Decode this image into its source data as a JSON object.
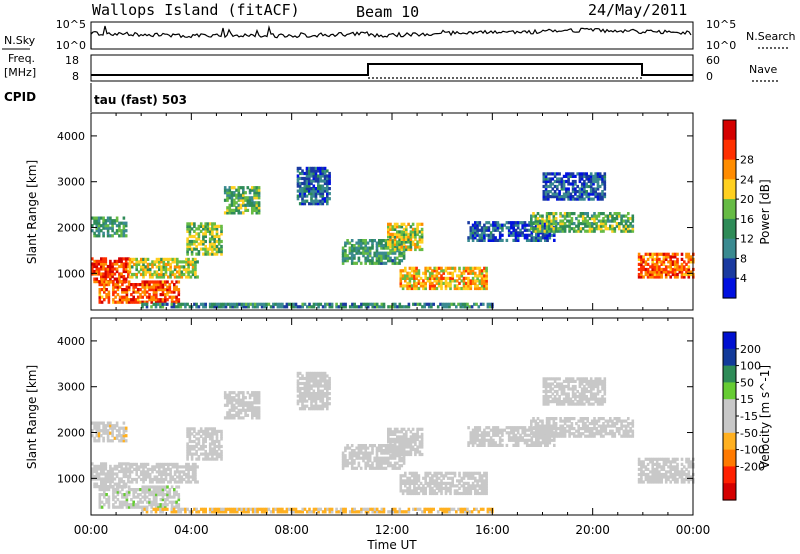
{
  "header": {
    "station": "Wallops Island (fitACF)",
    "beam": "Beam 10",
    "date": "24/May/2011"
  },
  "nsky_panel": {
    "left_label": "N.Sky",
    "left_ticks": [
      "10^5",
      "10^0"
    ],
    "right_ticks": [
      "10^5",
      "10^0"
    ],
    "right_label": "N.Search"
  },
  "freq_panel": {
    "left_label_1": "Freq.",
    "left_label_2": "[MHz]",
    "left_ticks": [
      "18",
      "8"
    ],
    "right_ticks": [
      "60",
      "0"
    ],
    "right_label": "Nave"
  },
  "cpid": {
    "label": "CPID",
    "program": "tau (fast) 503"
  },
  "colors": {
    "power_scale": [
      "#0010e0",
      "#1a3aa0",
      "#3a8a90",
      "#2e8b57",
      "#66bb44",
      "#ffd020",
      "#ff8c00",
      "#ff3000",
      "#d40000"
    ],
    "velocity_scale": [
      "#0010d0",
      "#123a9a",
      "#2e8b57",
      "#66cc33",
      "#c8c8c8",
      "#c8c8c8",
      "#ffb020",
      "#ff7a00",
      "#ff2000",
      "#d40000"
    ]
  },
  "chart_data": [
    {
      "type": "heatmap",
      "panel": "power",
      "title": "",
      "xlabel": "Time UT",
      "ylabel": "Slant Range [km]",
      "x_ticks": [
        "00:00",
        "04:00",
        "08:00",
        "12:00",
        "16:00",
        "20:00",
        "00:00"
      ],
      "y_ticks": [
        "1000",
        "2000",
        "3000",
        "4000"
      ],
      "xlim_hours": [
        0,
        24
      ],
      "ylim_km": [
        200,
        4500
      ],
      "colorbar_label": "Power [dB]",
      "colorbar_ticks": [
        "4",
        "8",
        "12",
        "16",
        "20",
        "24",
        "28"
      ],
      "colorbar_range": [
        0,
        32
      ],
      "echo_regions": [
        {
          "t0": 0.0,
          "t1": 1.5,
          "r0": 800,
          "r1": 1300,
          "level": 27
        },
        {
          "t0": 0.3,
          "t1": 3.5,
          "r0": 350,
          "r1": 800,
          "level": 26
        },
        {
          "t0": 1.5,
          "t1": 4.2,
          "r0": 900,
          "r1": 1300,
          "level": 18
        },
        {
          "t0": 0.0,
          "t1": 1.4,
          "r0": 1800,
          "r1": 2200,
          "level": 12
        },
        {
          "t0": 3.8,
          "t1": 5.2,
          "r0": 1400,
          "r1": 2100,
          "level": 16
        },
        {
          "t0": 5.3,
          "t1": 6.7,
          "r0": 2300,
          "r1": 2900,
          "level": 14
        },
        {
          "t0": 8.2,
          "t1": 9.5,
          "r0": 2500,
          "r1": 3300,
          "level": 7
        },
        {
          "t0": 10.0,
          "t1": 12.5,
          "r0": 1200,
          "r1": 1700,
          "level": 12
        },
        {
          "t0": 11.8,
          "t1": 13.2,
          "r0": 1500,
          "r1": 2100,
          "level": 18
        },
        {
          "t0": 12.3,
          "t1": 15.8,
          "r0": 650,
          "r1": 1100,
          "level": 21
        },
        {
          "t0": 15.0,
          "t1": 18.5,
          "r0": 1700,
          "r1": 2100,
          "level": 6
        },
        {
          "t0": 17.5,
          "t1": 21.6,
          "r0": 1900,
          "r1": 2300,
          "level": 15
        },
        {
          "t0": 18.0,
          "t1": 20.5,
          "r0": 2600,
          "r1": 3200,
          "level": 6
        },
        {
          "t0": 21.8,
          "t1": 24.0,
          "r0": 900,
          "r1": 1400,
          "level": 25
        },
        {
          "t0": 2.0,
          "t1": 16.0,
          "r0": 250,
          "r1": 350,
          "level": 10
        }
      ]
    },
    {
      "type": "heatmap",
      "panel": "velocity",
      "title": "",
      "xlabel": "Time UT",
      "ylabel": "Slant Range [km]",
      "x_ticks": [
        "00:00",
        "04:00",
        "08:00",
        "12:00",
        "16:00",
        "20:00",
        "00:00"
      ],
      "y_ticks": [
        "1000",
        "2000",
        "3000",
        "4000"
      ],
      "xlim_hours": [
        0,
        24
      ],
      "ylim_km": [
        200,
        4500
      ],
      "colorbar_label": "Velocity [m s^-1]",
      "colorbar_ticks": [
        "200",
        "100",
        "50",
        "15",
        "-15",
        "-50",
        "-100",
        "-200"
      ],
      "colorbar_range": [
        -250,
        250
      ],
      "echo_regions": [
        {
          "t0": 0.0,
          "t1": 1.5,
          "r0": 800,
          "r1": 1300,
          "level": 0
        },
        {
          "t0": 0.3,
          "t1": 3.5,
          "r0": 350,
          "r1": 800,
          "level": 30
        },
        {
          "t0": 1.5,
          "t1": 4.2,
          "r0": 900,
          "r1": 1300,
          "level": -5
        },
        {
          "t0": 0.0,
          "t1": 1.4,
          "r0": 1800,
          "r1": 2200,
          "level": -30
        },
        {
          "t0": 3.8,
          "t1": 5.2,
          "r0": 1400,
          "r1": 2100,
          "level": 5
        },
        {
          "t0": 5.3,
          "t1": 6.7,
          "r0": 2300,
          "r1": 2900,
          "level": 0
        },
        {
          "t0": 8.2,
          "t1": 9.5,
          "r0": 2500,
          "r1": 3300,
          "level": 0
        },
        {
          "t0": 10.0,
          "t1": 12.5,
          "r0": 1200,
          "r1": 1700,
          "level": -3
        },
        {
          "t0": 11.8,
          "t1": 13.2,
          "r0": 1500,
          "r1": 2100,
          "level": 0
        },
        {
          "t0": 12.3,
          "t1": 15.8,
          "r0": 650,
          "r1": 1100,
          "level": 2
        },
        {
          "t0": 15.0,
          "t1": 18.5,
          "r0": 1700,
          "r1": 2100,
          "level": 0
        },
        {
          "t0": 17.5,
          "t1": 21.6,
          "r0": 1900,
          "r1": 2300,
          "level": 0
        },
        {
          "t0": 18.0,
          "t1": 20.5,
          "r0": 2600,
          "r1": 3200,
          "level": 0
        },
        {
          "t0": 21.8,
          "t1": 24.0,
          "r0": 900,
          "r1": 1400,
          "level": -2
        },
        {
          "t0": 2.0,
          "t1": 16.0,
          "r0": 250,
          "r1": 350,
          "level": -60
        }
      ]
    }
  ]
}
